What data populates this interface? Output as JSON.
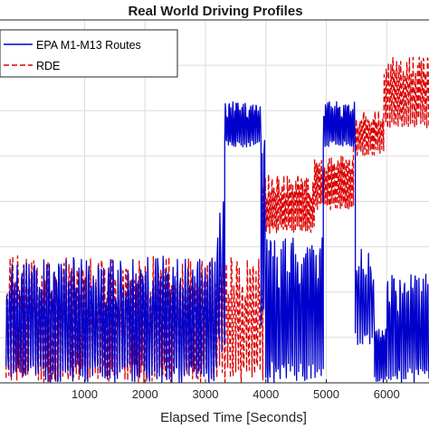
{
  "chart_data": {
    "type": "line",
    "title": "Real World Driving Profiles",
    "xlabel": "Elapsed Time [Seconds]",
    "ylabel": "",
    "xlim": [
      -400,
      6700
    ],
    "ylim": [
      0,
      80
    ],
    "x_ticks": [
      1000,
      2000,
      3000,
      4000,
      5000,
      6000
    ],
    "x_tick_labels": [
      "1000",
      "2000",
      "3000",
      "4000",
      "5000",
      "6000"
    ],
    "y_gridlines": [
      10,
      20,
      30,
      40,
      50,
      60,
      70
    ],
    "grid": true,
    "legend_position": "top-left",
    "series": [
      {
        "name": "EPA M1-M13 Routes",
        "color": "#0000cc",
        "line_style": "solid",
        "segments": [
          {
            "x_start": -300,
            "x_end": 3180,
            "low": 0,
            "high": 28,
            "cycles": 85,
            "seed": 11
          },
          {
            "x_start": 3180,
            "x_end": 3320,
            "low": 5,
            "high": 42,
            "cycles": 3,
            "seed": 12
          },
          {
            "x_start": 3320,
            "x_end": 3920,
            "low": 52,
            "high": 62,
            "cycles": 20,
            "seed": 13
          },
          {
            "x_start": 3920,
            "x_end": 4000,
            "low": 10,
            "high": 55,
            "cycles": 2,
            "seed": 14
          },
          {
            "x_start": 4000,
            "x_end": 4950,
            "low": 0,
            "high": 32,
            "cycles": 28,
            "seed": 15
          },
          {
            "x_start": 4950,
            "x_end": 5480,
            "low": 52,
            "high": 62,
            "cycles": 18,
            "seed": 16
          },
          {
            "x_start": 5480,
            "x_end": 5800,
            "low": 8,
            "high": 30,
            "cycles": 8,
            "seed": 17
          },
          {
            "x_start": 5800,
            "x_end": 6000,
            "low": 0,
            "high": 12,
            "cycles": 7,
            "seed": 18
          },
          {
            "x_start": 6000,
            "x_end": 6700,
            "low": 0,
            "high": 24,
            "cycles": 20,
            "seed": 19
          }
        ]
      },
      {
        "name": "RDE",
        "color": "#dd0000",
        "line_style": "dashed",
        "segments": [
          {
            "x_start": -300,
            "x_end": 3950,
            "low": 0,
            "high": 28,
            "cycles": 95,
            "seed": 21
          },
          {
            "x_start": 3950,
            "x_end": 4800,
            "low": 33,
            "high": 46,
            "cycles": 30,
            "seed": 22
          },
          {
            "x_start": 4800,
            "x_end": 5450,
            "low": 38,
            "high": 50,
            "cycles": 24,
            "seed": 23
          },
          {
            "x_start": 5450,
            "x_end": 5950,
            "low": 50,
            "high": 60,
            "cycles": 16,
            "seed": 24
          },
          {
            "x_start": 5950,
            "x_end": 6700,
            "low": 56,
            "high": 72,
            "cycles": 22,
            "seed": 25
          }
        ]
      }
    ]
  }
}
